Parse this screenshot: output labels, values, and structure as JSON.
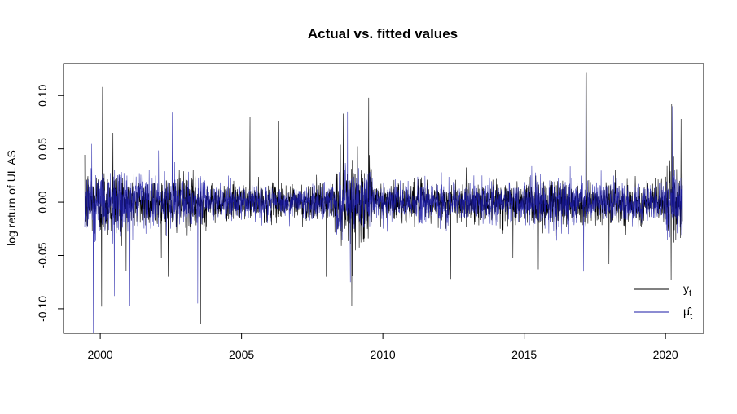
{
  "chart_data": {
    "type": "line",
    "title": "Actual vs. fitted values",
    "xlabel": "",
    "ylabel": "log return of UL AS",
    "xlim": [
      1998.7,
      2021.35
    ],
    "ylim": [
      -0.123,
      0.13
    ],
    "x_ticks": [
      2000,
      2005,
      2010,
      2015,
      2020
    ],
    "x_tick_labels": [
      "2000",
      "2005",
      "2010",
      "2015",
      "2020"
    ],
    "y_ticks": [
      -0.1,
      -0.05,
      0.0,
      0.05,
      0.1
    ],
    "y_tick_labels": [
      "-0.10",
      "-0.05",
      "0.00",
      "0.05",
      "0.10"
    ],
    "grid": false,
    "legend_position": "bottom-right",
    "date_range": [
      1999.45,
      2020.6
    ],
    "series": [
      {
        "name": "y_t",
        "label_main": "y",
        "label_sub": "t",
        "color": "#000000",
        "volatility_regimes": [
          {
            "from": 1999.45,
            "to": 2001.0,
            "sd": 0.016
          },
          {
            "from": 2001.0,
            "to": 2003.8,
            "sd": 0.0125
          },
          {
            "from": 2003.8,
            "to": 2008.3,
            "sd": 0.0085
          },
          {
            "from": 2008.3,
            "to": 2009.6,
            "sd": 0.018
          },
          {
            "from": 2009.6,
            "to": 2015.0,
            "sd": 0.0095
          },
          {
            "from": 2015.0,
            "to": 2016.7,
            "sd": 0.012
          },
          {
            "from": 2016.7,
            "to": 2020.0,
            "sd": 0.0095
          },
          {
            "from": 2020.0,
            "to": 2020.6,
            "sd": 0.017
          }
        ],
        "spikes": [
          {
            "x": 2000.08,
            "y": 0.108
          },
          {
            "x": 2000.05,
            "y": -0.098
          },
          {
            "x": 2000.45,
            "y": 0.065
          },
          {
            "x": 2002.4,
            "y": -0.07
          },
          {
            "x": 2003.55,
            "y": -0.114
          },
          {
            "x": 2005.3,
            "y": 0.08
          },
          {
            "x": 2006.3,
            "y": 0.076
          },
          {
            "x": 2008.0,
            "y": -0.07
          },
          {
            "x": 2008.6,
            "y": 0.083
          },
          {
            "x": 2008.9,
            "y": -0.097
          },
          {
            "x": 2009.5,
            "y": 0.098
          },
          {
            "x": 2012.4,
            "y": -0.072
          },
          {
            "x": 2014.6,
            "y": -0.052
          },
          {
            "x": 2015.5,
            "y": -0.063
          },
          {
            "x": 2017.2,
            "y": 0.122
          },
          {
            "x": 2018.0,
            "y": -0.058
          },
          {
            "x": 2020.2,
            "y": -0.073
          },
          {
            "x": 2020.22,
            "y": 0.092
          },
          {
            "x": 2020.55,
            "y": 0.078
          }
        ]
      },
      {
        "name": "mu_hat_t",
        "label_main": "μ̂",
        "label_sub": "t",
        "color": "#1a1aa6",
        "volatility_regimes": [
          {
            "from": 1999.45,
            "to": 2001.0,
            "sd": 0.0155
          },
          {
            "from": 2001.0,
            "to": 2003.8,
            "sd": 0.012
          },
          {
            "from": 2003.8,
            "to": 2008.3,
            "sd": 0.008
          },
          {
            "from": 2008.3,
            "to": 2009.6,
            "sd": 0.0175
          },
          {
            "from": 2009.6,
            "to": 2015.0,
            "sd": 0.009
          },
          {
            "from": 2015.0,
            "to": 2016.7,
            "sd": 0.0115
          },
          {
            "from": 2016.7,
            "to": 2020.0,
            "sd": 0.009
          },
          {
            "from": 2020.0,
            "to": 2020.6,
            "sd": 0.016
          }
        ],
        "spikes": [
          {
            "x": 1999.75,
            "y": -0.123
          },
          {
            "x": 2000.1,
            "y": 0.07
          },
          {
            "x": 2000.5,
            "y": -0.088
          },
          {
            "x": 2001.05,
            "y": -0.097
          },
          {
            "x": 2002.55,
            "y": 0.084
          },
          {
            "x": 2003.45,
            "y": -0.095
          },
          {
            "x": 2008.75,
            "y": 0.085
          },
          {
            "x": 2008.85,
            "y": -0.075
          },
          {
            "x": 2017.18,
            "y": 0.12
          },
          {
            "x": 2017.1,
            "y": -0.065
          },
          {
            "x": 2020.25,
            "y": 0.09
          }
        ]
      }
    ]
  }
}
